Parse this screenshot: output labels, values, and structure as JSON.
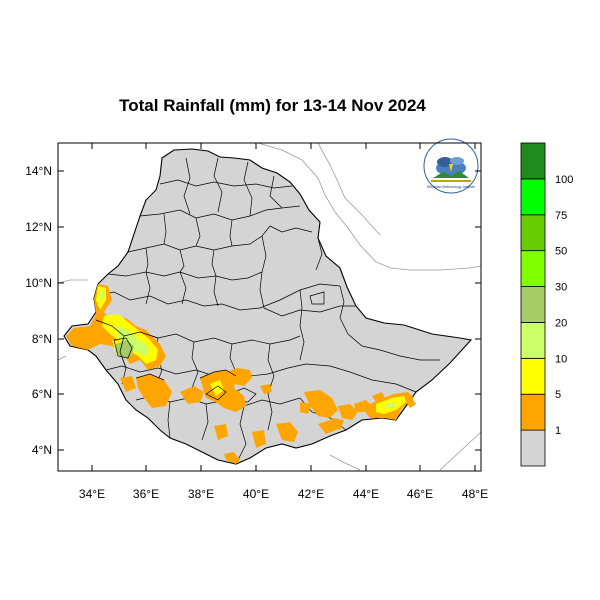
{
  "title": "Total Rainfall (mm) for 13-14 Nov 2024",
  "colors": {
    "land": "#d4d4d4",
    "border": "#000000",
    "outside_border": "#9a9a9a",
    "frame": "#000000"
  },
  "axes": {
    "x_ticks": [
      "34°E",
      "36°E",
      "38°E",
      "40°E",
      "42°E",
      "44°E",
      "46°E",
      "48°E"
    ],
    "y_ticks": [
      "14°N",
      "12°N",
      "10°N",
      "8°N",
      "6°N",
      "4°N"
    ],
    "lon_range": [
      33,
      48
    ],
    "lat_range": [
      3.2,
      15
    ]
  },
  "legend": {
    "labels": [
      "1",
      "5",
      "10",
      "20",
      "30",
      "50",
      "75",
      "100"
    ],
    "bins": [
      {
        "range": "<1",
        "color": "#d4d4d4"
      },
      {
        "range": "1-5",
        "color": "#ffa500"
      },
      {
        "range": "5-10",
        "color": "#ffff00"
      },
      {
        "range": "10-20",
        "color": "#ccff66"
      },
      {
        "range": "20-30",
        "color": "#a5cc66"
      },
      {
        "range": "30-50",
        "color": "#80ff00"
      },
      {
        "range": "50-75",
        "color": "#66cc00"
      },
      {
        "range": "75-100",
        "color": "#00ff00"
      },
      {
        "range": ">100",
        "color": "#208c20"
      }
    ]
  },
  "logo": {
    "icon": "meteorology-institute-logo",
    "text": "Ethiopian Meteorology Institute"
  }
}
